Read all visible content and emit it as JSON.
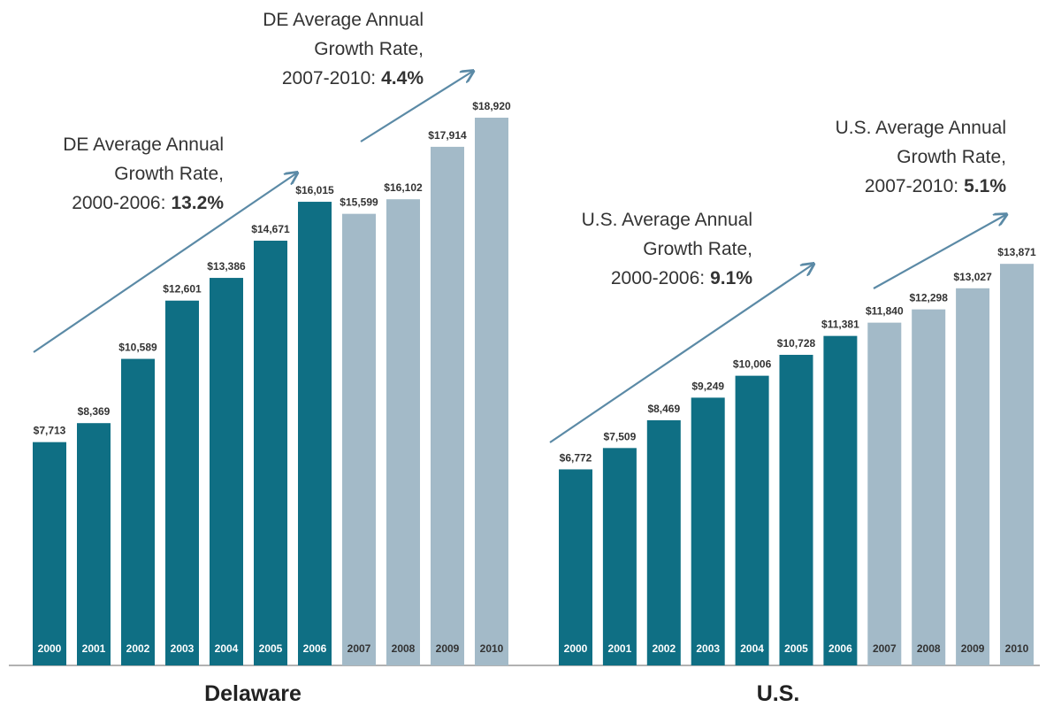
{
  "chart_data": [
    {
      "type": "bar",
      "title": "Delaware",
      "categories": [
        "2000",
        "2001",
        "2002",
        "2003",
        "2004",
        "2005",
        "2006",
        "2007",
        "2008",
        "2009",
        "2010"
      ],
      "values": [
        7713,
        8369,
        10589,
        12601,
        13386,
        14671,
        16015,
        15599,
        16102,
        17914,
        18920
      ],
      "value_labels": [
        "$7,713",
        "$8,369",
        "$10,589",
        "$12,601",
        "$13,386",
        "$14,671",
        "$16,015",
        "$15,599",
        "$16,102",
        "$17,914",
        "$18,920"
      ],
      "colors": [
        "#0f6f84",
        "#0f6f84",
        "#0f6f84",
        "#0f6f84",
        "#0f6f84",
        "#0f6f84",
        "#0f6f84",
        "#a3bac8",
        "#a3bac8",
        "#a3bac8",
        "#a3bac8"
      ],
      "annotations": [
        {
          "lines": [
            "DE Average Annual",
            "Growth Rate,",
            "2000-2006:"
          ],
          "emphasis": "13.2%"
        },
        {
          "lines": [
            "DE Average Annual",
            "Growth Rate,",
            "2007-2010:"
          ],
          "emphasis": "4.4%"
        }
      ]
    },
    {
      "type": "bar",
      "title": "U.S.",
      "categories": [
        "2000",
        "2001",
        "2002",
        "2003",
        "2004",
        "2005",
        "2006",
        "2007",
        "2008",
        "2009",
        "2010"
      ],
      "values": [
        6772,
        7509,
        8469,
        9249,
        10006,
        10728,
        11381,
        11840,
        12298,
        13027,
        13871
      ],
      "value_labels": [
        "$6,772",
        "$7,509",
        "$8,469",
        "$9,249",
        "$10,006",
        "$10,728",
        "$11,381",
        "$11,840",
        "$12,298",
        "$13,027",
        "$13,871"
      ],
      "colors": [
        "#0f6f84",
        "#0f6f84",
        "#0f6f84",
        "#0f6f84",
        "#0f6f84",
        "#0f6f84",
        "#0f6f84",
        "#a3bac8",
        "#a3bac8",
        "#a3bac8",
        "#a3bac8"
      ],
      "annotations": [
        {
          "lines": [
            "U.S. Average Annual",
            "Growth Rate,",
            "2000-2006:"
          ],
          "emphasis": "9.1%"
        },
        {
          "lines": [
            "U.S. Average Annual",
            "Growth Rate,",
            "2007-2010:"
          ],
          "emphasis": "5.1%"
        }
      ]
    }
  ]
}
